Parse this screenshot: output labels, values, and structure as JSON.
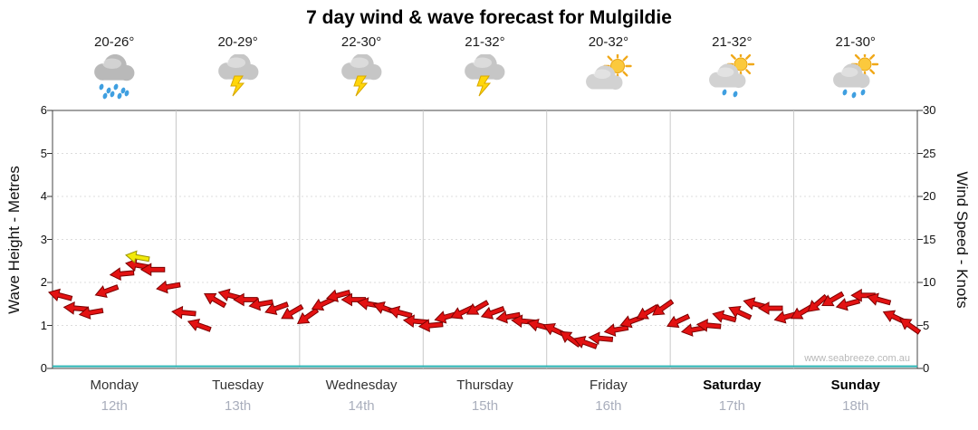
{
  "watermark": "www.seabreeze.com.au",
  "days": [
    {
      "name": "Monday",
      "date": "12th",
      "temp": "20-26°",
      "icon": "rain",
      "emphasis": false
    },
    {
      "name": "Tuesday",
      "date": "13th",
      "temp": "20-29°",
      "icon": "storm",
      "emphasis": false
    },
    {
      "name": "Wednesday",
      "date": "14th",
      "temp": "22-30°",
      "icon": "storm",
      "emphasis": false
    },
    {
      "name": "Thursday",
      "date": "15th",
      "temp": "21-32°",
      "icon": "storm",
      "emphasis": false
    },
    {
      "name": "Friday",
      "date": "16th",
      "temp": "20-32°",
      "icon": "sun-cloud",
      "emphasis": false
    },
    {
      "name": "Saturday",
      "date": "17th",
      "temp": "21-32°",
      "icon": "sun-cloud-drizzle",
      "emphasis": true
    },
    {
      "name": "Sunday",
      "date": "18th",
      "temp": "21-30°",
      "icon": "sun-cloud-rain",
      "emphasis": true
    }
  ],
  "chart_data": {
    "type": "line",
    "title": "7 day wind & wave forecast for Mulgildie",
    "x_categories": [
      "Monday 12th",
      "Tuesday 13th",
      "Wednesday 14th",
      "Thursday 15th",
      "Friday 16th",
      "Saturday 17th",
      "Sunday 18th"
    ],
    "left_axis": {
      "label": "Wave Height - Metres",
      "min": 0,
      "max": 6,
      "step": 1
    },
    "right_axis": {
      "label": "Wind Speed - Knots",
      "min": 0,
      "max": 30,
      "step": 5
    },
    "points_per_day": 8,
    "grid": true,
    "legend": false,
    "series": [
      {
        "name": "Wind Speed",
        "unit": "knots",
        "type": "wind-arrows",
        "color": "#e31212",
        "values": [
          8.5,
          7,
          6.5,
          9,
          11,
          12,
          11.5,
          9.5,
          6.5,
          5,
          8,
          8.5,
          8,
          7.5,
          7,
          6.5,
          6,
          7.5,
          8.5,
          8,
          7.5,
          7,
          6.5,
          5.5,
          5,
          6,
          6.5,
          7,
          6.5,
          6,
          5.5,
          5,
          4.5,
          3.5,
          3,
          3.5,
          4.5,
          5.5,
          6.5,
          7,
          5.5,
          4.5,
          5,
          6,
          6.5,
          7.5,
          7,
          6,
          6.5,
          7.5,
          8,
          7.5,
          8.5,
          8,
          6,
          5
        ]
      },
      {
        "name": "Wind Direction",
        "unit": "degrees",
        "type": "direction",
        "values": [
          195,
          185,
          170,
          160,
          175,
          190,
          180,
          170,
          185,
          200,
          210,
          195,
          180,
          170,
          160,
          150,
          145,
          155,
          165,
          180,
          190,
          200,
          195,
          185,
          175,
          165,
          155,
          150,
          160,
          170,
          185,
          195,
          205,
          215,
          200,
          185,
          170,
          160,
          150,
          145,
          155,
          170,
          185,
          195,
          205,
          195,
          180,
          165,
          150,
          140,
          150,
          165,
          180,
          195,
          205,
          215
        ]
      },
      {
        "name": "Wave Height",
        "unit": "metres",
        "type": "line",
        "color": "#2ab5b5",
        "values": [
          0.05,
          0.05,
          0.05,
          0.05,
          0.05,
          0.05,
          0.05,
          0.05
        ]
      }
    ],
    "highlight_arrow": {
      "index": 5,
      "color": "#f2e90a"
    }
  }
}
